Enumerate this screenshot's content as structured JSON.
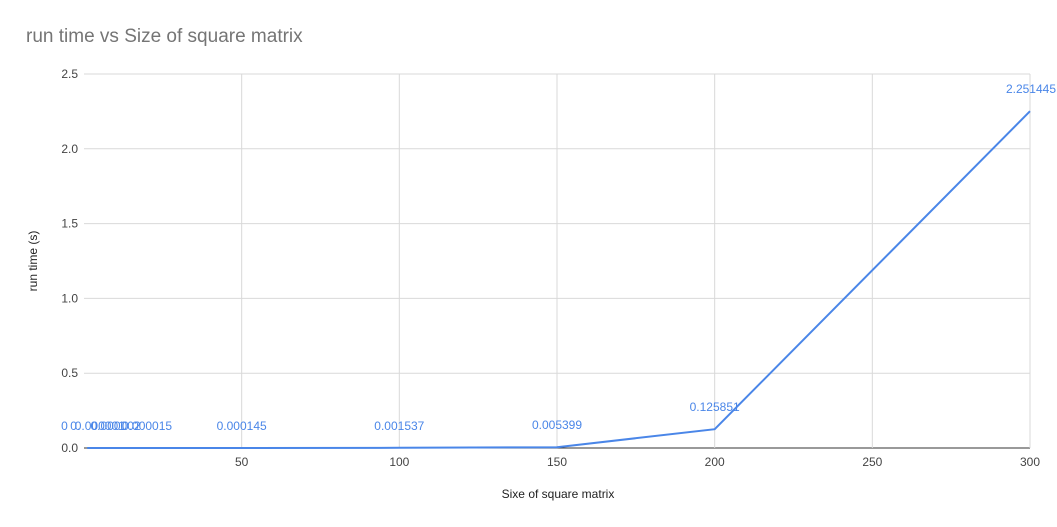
{
  "chart_data": {
    "type": "line",
    "title": "run time vs Size of square matrix",
    "xlabel": "Sixe of square matrix",
    "ylabel": "run time (s)",
    "xlim": [
      0,
      300
    ],
    "ylim": [
      0,
      2.5
    ],
    "x_ticks": [
      50,
      100,
      150,
      200,
      250,
      300
    ],
    "y_ticks": [
      0,
      0.5,
      1.0,
      1.5,
      2.0,
      2.5
    ],
    "y_tick_labels": [
      "0.0",
      "0.5",
      "1.0",
      "1.5",
      "2.0",
      "2.5"
    ],
    "grid": true,
    "line_color": "#4a86e8",
    "series": [
      {
        "x": [
          1,
          2,
          5,
          10,
          20,
          50,
          100,
          150,
          200,
          300
        ],
        "values": [
          0,
          0,
          1e-06,
          2e-06,
          1.5e-05,
          0.000145,
          0.001537,
          0.005399,
          0.125851,
          2.251445
        ],
        "labels": [
          "0",
          "0.",
          "0.000001",
          "0.000002",
          "0.000015",
          "0.000145",
          "0.001537",
          "0.005399",
          "0.125851",
          "2.251445"
        ]
      }
    ]
  }
}
